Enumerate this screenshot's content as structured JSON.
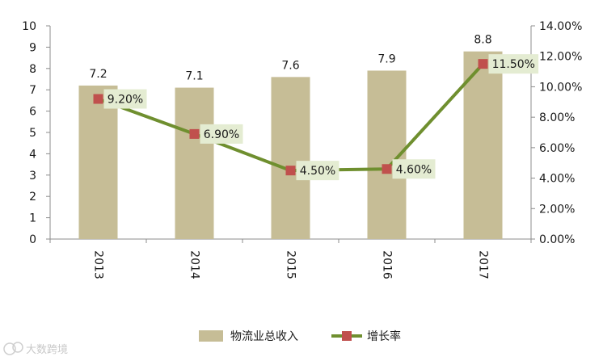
{
  "chart_data": {
    "type": "bar",
    "categories": [
      "2013",
      "2014",
      "2015",
      "2016",
      "2017"
    ],
    "series": [
      {
        "name": "物流业总收入",
        "type": "bar",
        "axis": "left",
        "values": [
          7.2,
          7.1,
          7.6,
          7.9,
          8.8
        ],
        "labels": [
          "7.2",
          "7.1",
          "7.6",
          "7.9",
          "8.8"
        ],
        "color": "#c6bd96"
      },
      {
        "name": "增长率",
        "type": "line",
        "axis": "right",
        "values": [
          9.2,
          6.9,
          4.5,
          4.6,
          11.5
        ],
        "labels": [
          "9.20%",
          "6.90%",
          "4.50%",
          "4.60%",
          "11.50%"
        ],
        "color": "#6f8f2f",
        "marker_color": "#c0504d"
      }
    ],
    "y_left": {
      "min": 0,
      "max": 10,
      "ticks": [
        "0",
        "1",
        "2",
        "3",
        "4",
        "5",
        "6",
        "7",
        "8",
        "9",
        "10"
      ]
    },
    "y_right": {
      "min": 0,
      "max": 14,
      "ticks": [
        "0.00%",
        "2.00%",
        "4.00%",
        "6.00%",
        "8.00%",
        "10.00%",
        "12.00%",
        "14.00%"
      ]
    },
    "grid": false,
    "legend_position": "bottom",
    "rate_label_background": "#e4ecd2"
  },
  "watermark": {
    "text": "大数跨境",
    "icon": "cloud-logo-icon"
  }
}
